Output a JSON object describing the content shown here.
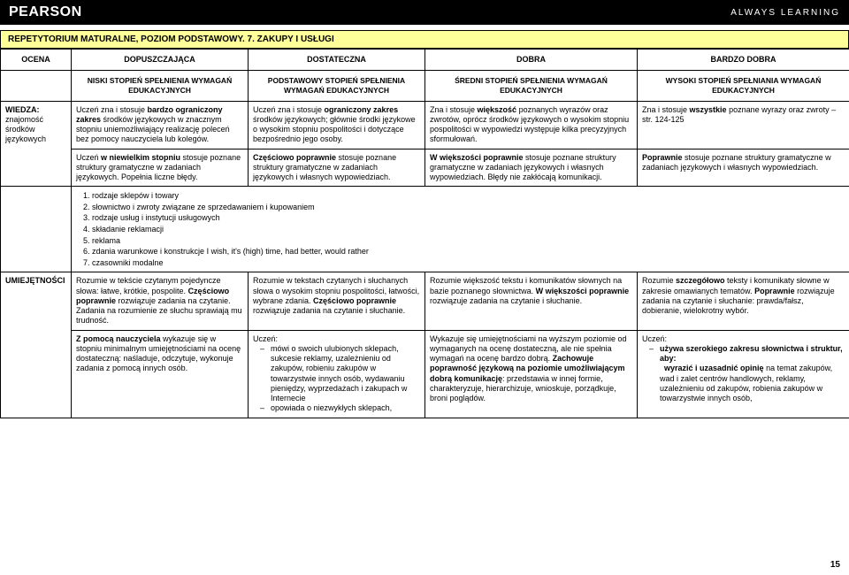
{
  "brand": "PEARSON",
  "tagline": "ALWAYS LEARNING",
  "doc_title": "REPETYTORIUM MATURALNE, POZIOM PODSTAWOWY. 7. ZAKUPY I USŁUGI",
  "ocena_label": "OCENA",
  "grades": [
    "DOPUSZCZAJĄCA",
    "DOSTATECZNA",
    "DOBRA",
    "BARDZO DOBRA"
  ],
  "levels": [
    "NISKI STOPIEŃ SPEŁNIENIA WYMAGAŃ EDUKACYJNYCH",
    "PODSTAWOWY STOPIEŃ SPEŁNIENIA WYMAGAŃ EDUKACYJNYCH",
    "ŚREDNI STOPIEŃ SPEŁNIENIA WYMAGAŃ EDUKACYJNYCH",
    "WYSOKI STOPIEŃ SPEŁNIANIA WYMAGAŃ EDUKACYJNYCH"
  ],
  "row_labels": {
    "wiedza": "WIEDZA:",
    "wiedza_sub": "znajomość środków językowych",
    "umie": "UMIEJĘTNOŚCI"
  },
  "wiedza_a": {
    "c1a": "Uczeń zna i stosuje ",
    "c1b": "bardzo ograniczony zakres",
    "c1c": " środków językowych w znacznym stopniu uniemożliwiający realizację poleceń bez pomocy nauczyciela lub kolegów.",
    "c2a": "Uczeń zna i stosuje ",
    "c2b": "ograniczony zakres",
    "c2c": " środków językowych; głównie środki językowe o wysokim stopniu pospolitości i dotyczące bezpośrednio jego osoby.",
    "c3a": "Zna i stosuje ",
    "c3b": "większość",
    "c3c": " poznanych wyrazów oraz zwrotów, oprócz środków językowych o wysokim stopniu pospolitości w wypowiedzi występuje kilka precyzyjnych sformułowań.",
    "c4a": "Zna i stosuje ",
    "c4b": "wszystkie",
    "c4c": " poznane wyrazy oraz zwroty – str. 124-125"
  },
  "wiedza_b": {
    "c1a": "Uczeń ",
    "c1b": "w niewielkim stopniu",
    "c1c": " stosuje poznane struktury gramatyczne w zadaniach językowych. Popełnia liczne błędy.",
    "c2a": "Częściowo poprawnie",
    "c2b": " stosuje poznane struktury gramatyczne w zadaniach językowych i własnych wypowiedziach.",
    "c3a": "W większości poprawnie",
    "c3b": " stosuje poznane struktury gramatyczne w zadaniach językowych i własnych wypowiedziach. Błędy nie zakłócają komunikacji.",
    "c4a": "Poprawnie",
    "c4b": " stosuje poznane struktury gramatyczne w zadaniach językowych i własnych wypowiedziach."
  },
  "topics": [
    "rodzaje sklepów i towary",
    "słownictwo i zwroty związane ze sprzedawaniem i kupowaniem",
    "rodzaje usług i instytucji usługowych",
    "składanie reklamacji",
    "reklama",
    "zdania warunkowe i konstrukcje I wish, it's (high) time, had better, would rather",
    "czasowniki modalne"
  ],
  "umie_a": {
    "c1a": "Rozumie w tekście czytanym pojedyncze słowa: łatwe, krótkie, pospolite. ",
    "c1b": "Częściowo poprawnie",
    "c1c": " rozwiązuje zadania na czytanie. Zadania na rozumienie ze słuchu sprawiają mu trudność.",
    "c2a": "Rozumie w tekstach czytanych i słuchanych słowa o wysokim stopniu pospolitości, łatwości, wybrane zdania. ",
    "c2b": "Częściowo poprawnie",
    "c2c": " rozwiązuje zadania na czytanie i słuchanie.",
    "c3a": "Rozumie większość tekstu i komunikatów słownych na bazie poznanego słownictwa. ",
    "c3b": "W większości poprawnie",
    "c3c": " rozwiązuje zadania na czytanie i słuchanie.",
    "c4a": "Rozumie ",
    "c4b": "szczegółowo",
    "c4c": " teksty i komunikaty słowne w zakresie omawianych tematów. ",
    "c4d": "Poprawnie",
    "c4e": " rozwiązuje zadania na czytanie i słuchanie: prawda/fałsz, dobieranie, wielokrotny wybór."
  },
  "umie_b": {
    "c1a": "Z pomocą nauczyciela",
    "c1b": " wykazuje się w stopniu minimalnym umiejętnościami na ocenę dostateczną: naśladuje, odczytuje, wykonuje zadania z pomocą innych osób.",
    "c2_intro": "Uczeń:",
    "c2_li1": "mówi o swoich ulubionych sklepach, sukcesie reklamy, uzależnieniu od zakupów, robieniu zakupów w towarzystwie innych osób, wydawaniu pieniędzy, wyprzedażach i zakupach w Internecie",
    "c2_li2": "opowiada o niezwykłych sklepach,",
    "c3a": "Wykazuje się umiejętnościami na wyższym poziomie od wymaganych na ocenę dostateczną, ale nie spełnia wymagań na ocenę bardzo dobrą. ",
    "c3b": "Zachowuje poprawność językową na poziomie umożliwiającym dobrą komunikację",
    "c3c": ": przedstawia w innej formie, charakteryzuje, hierarchizuje, wnioskuje, porządkuje, broni poglądów.",
    "c4_intro": "Uczeń:",
    "c4_li1a": "używa szerokiego zakresu słownictwa i struktur, aby:",
    "c4_li1b": "wyrazić i uzasadnić opinię",
    "c4_li1c": " na temat zakupów, wad i zalet centrów handlowych, reklamy, uzależnieniu od zakupów, robienia zakupów w towarzystwie innych osób,"
  },
  "pagenum": "15",
  "colors": {
    "header_bg": "#000000",
    "header_fg": "#ffffff",
    "title_bg": "#ffff99",
    "border": "#000000"
  }
}
